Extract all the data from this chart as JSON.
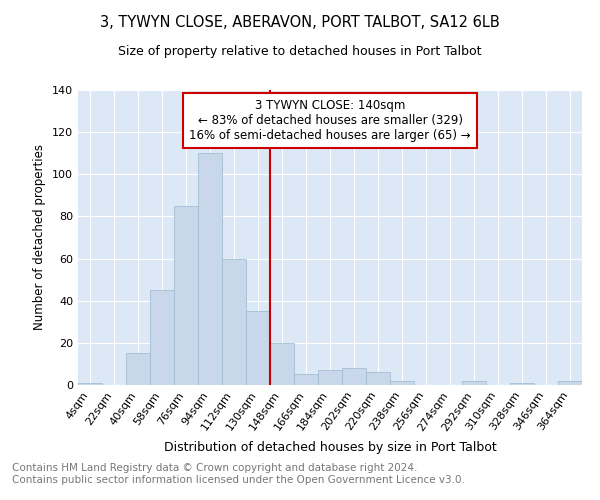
{
  "title": "3, TYWYN CLOSE, ABERAVON, PORT TALBOT, SA12 6LB",
  "subtitle": "Size of property relative to detached houses in Port Talbot",
  "xlabel": "Distribution of detached houses by size in Port Talbot",
  "ylabel": "Number of detached properties",
  "bar_labels": [
    "4sqm",
    "22sqm",
    "40sqm",
    "58sqm",
    "76sqm",
    "94sqm",
    "112sqm",
    "130sqm",
    "148sqm",
    "166sqm",
    "184sqm",
    "202sqm",
    "220sqm",
    "238sqm",
    "256sqm",
    "274sqm",
    "292sqm",
    "310sqm",
    "328sqm",
    "346sqm",
    "364sqm"
  ],
  "bar_values": [
    1,
    0,
    15,
    45,
    85,
    110,
    60,
    35,
    20,
    5,
    7,
    8,
    6,
    2,
    0,
    0,
    2,
    0,
    1,
    0,
    2
  ],
  "bar_color": "#c8d8ea",
  "bar_edgecolor": "#9ab8d0",
  "vline_color": "#cc0000",
  "annotation_text": "3 TYWYN CLOSE: 140sqm\n← 83% of detached houses are smaller (329)\n16% of semi-detached houses are larger (65) →",
  "annotation_box_color": "#cc0000",
  "background_color": "#dce8f5",
  "grid_color": "#ffffff",
  "ylim": [
    0,
    140
  ],
  "yticks": [
    0,
    20,
    40,
    60,
    80,
    100,
    120,
    140
  ],
  "footer_text": "Contains HM Land Registry data © Crown copyright and database right 2024.\nContains public sector information licensed under the Open Government Licence v3.0.",
  "title_fontsize": 10.5,
  "subtitle_fontsize": 9,
  "xlabel_fontsize": 9,
  "ylabel_fontsize": 8.5,
  "tick_fontsize": 8,
  "annotation_fontsize": 8.5,
  "footer_fontsize": 7.5
}
